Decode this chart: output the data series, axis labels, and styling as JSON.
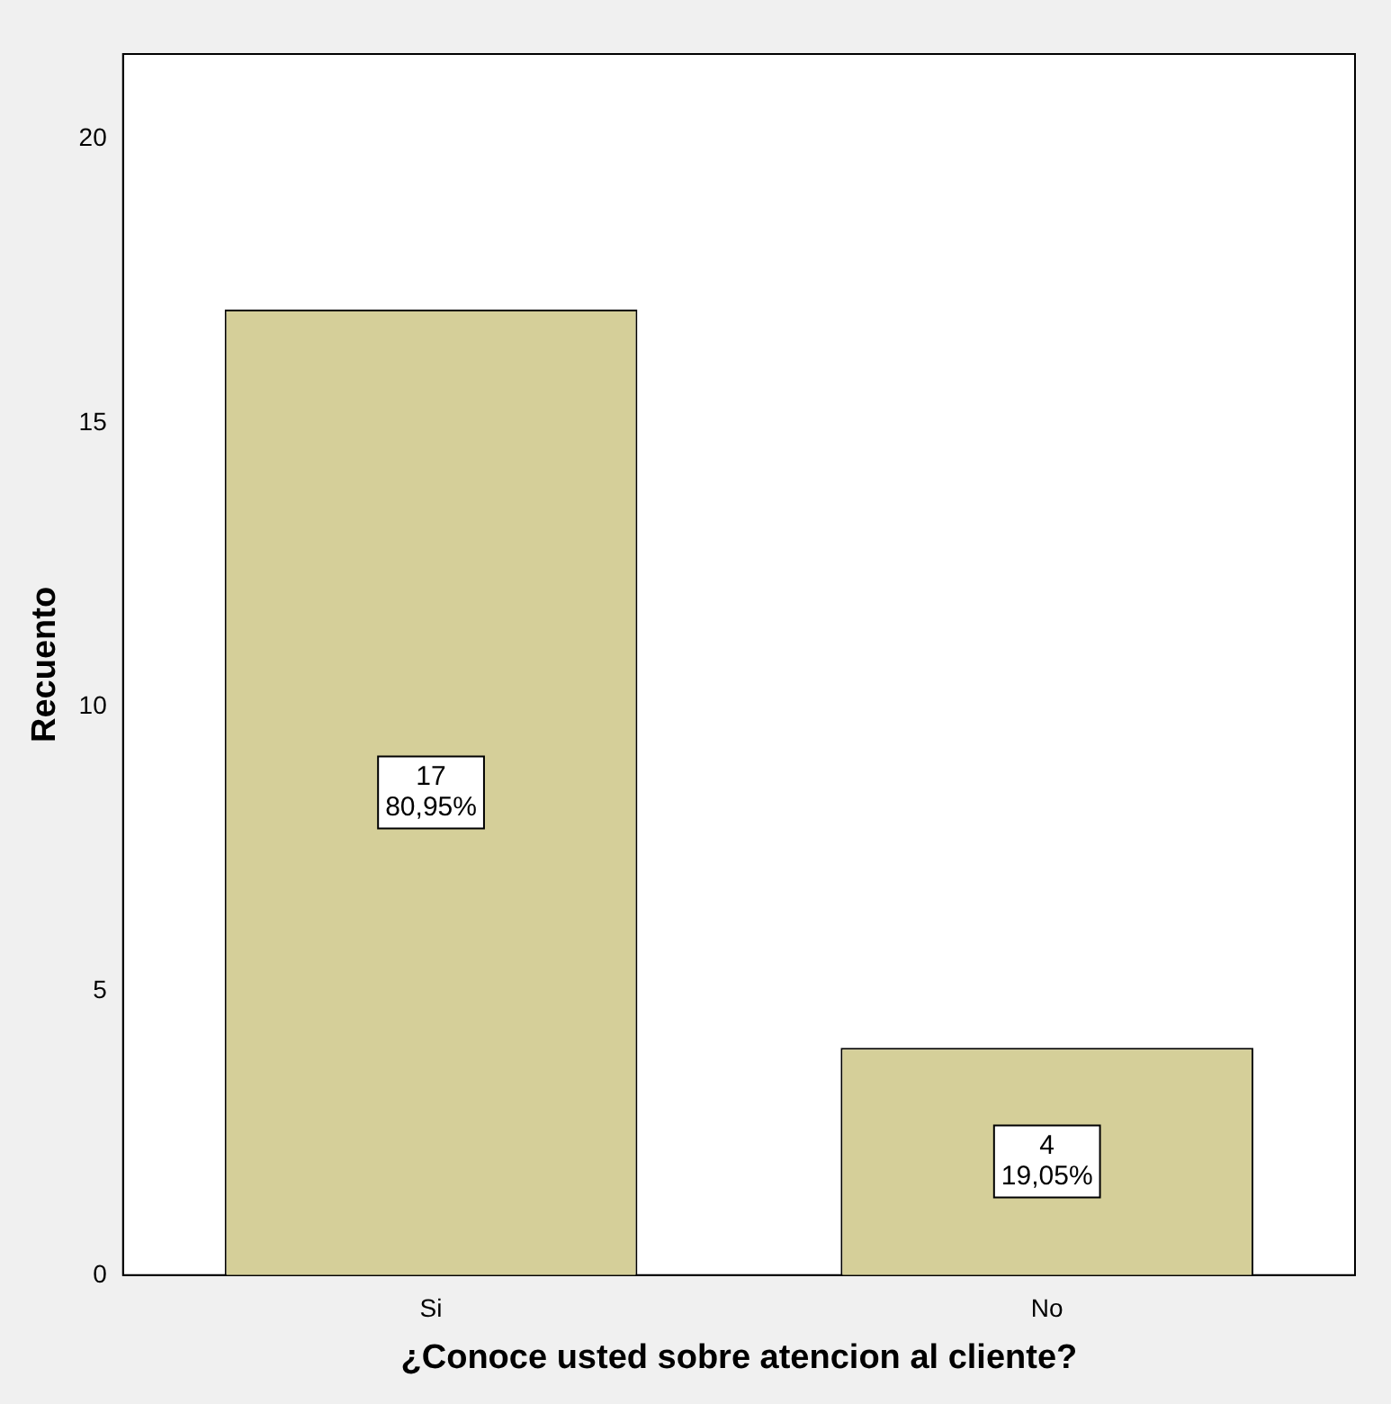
{
  "chart_data": {
    "type": "bar",
    "xlabel": "¿Conoce usted sobre atencion al cliente?",
    "ylabel": "Recuento",
    "categories": [
      "Si",
      "No"
    ],
    "values": [
      17,
      4
    ],
    "value_labels": [
      "17\n80,95%",
      "4\n19,05%"
    ],
    "color": "#d5cf99",
    "ylim": [
      0,
      21.5
    ],
    "yticks": [
      0,
      5,
      10,
      15,
      20
    ],
    "grid": false,
    "legend": false
  }
}
